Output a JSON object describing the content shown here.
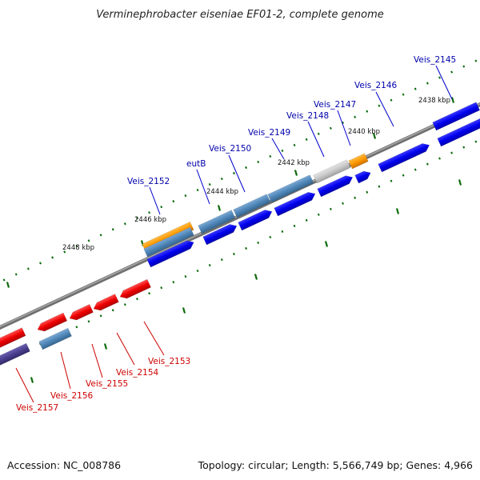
{
  "title": "Verminephrobacter eiseniae EF01-2, complete genome",
  "footer": {
    "accession": "Accession: NC_008786",
    "topology": "Topology: circular; Length: 5,566,749 bp; Genes: 4,966"
  },
  "colors": {
    "forward_label": "#0000aa",
    "reverse_label": "#cc0000",
    "cds_forward": "#0000ee",
    "cds_reverse": "#ee0000",
    "gene_steel": "#4f86b8",
    "gene_orange": "#ff9900",
    "gene_grey": "#c8c8c8",
    "gene_purple": "#4a3f8f",
    "backbone": "#808080",
    "tick": "#0b6b0b"
  },
  "kbp_labels": [
    "2438 kbp",
    "2440 kbp",
    "2442 kbp",
    "2444 kbp",
    "2446 kbp",
    "2448 kbp"
  ],
  "forward_labels": [
    "Veis_2145",
    "Veis_2146",
    "Veis_2147",
    "Veis_2148",
    "Veis_2149",
    "Veis_2150",
    "eutB",
    "Veis_2152"
  ],
  "reverse_labels": [
    "Veis_2153",
    "Veis_2154",
    "Veis_2155",
    "Veis_2156",
    "Veis_2157"
  ]
}
